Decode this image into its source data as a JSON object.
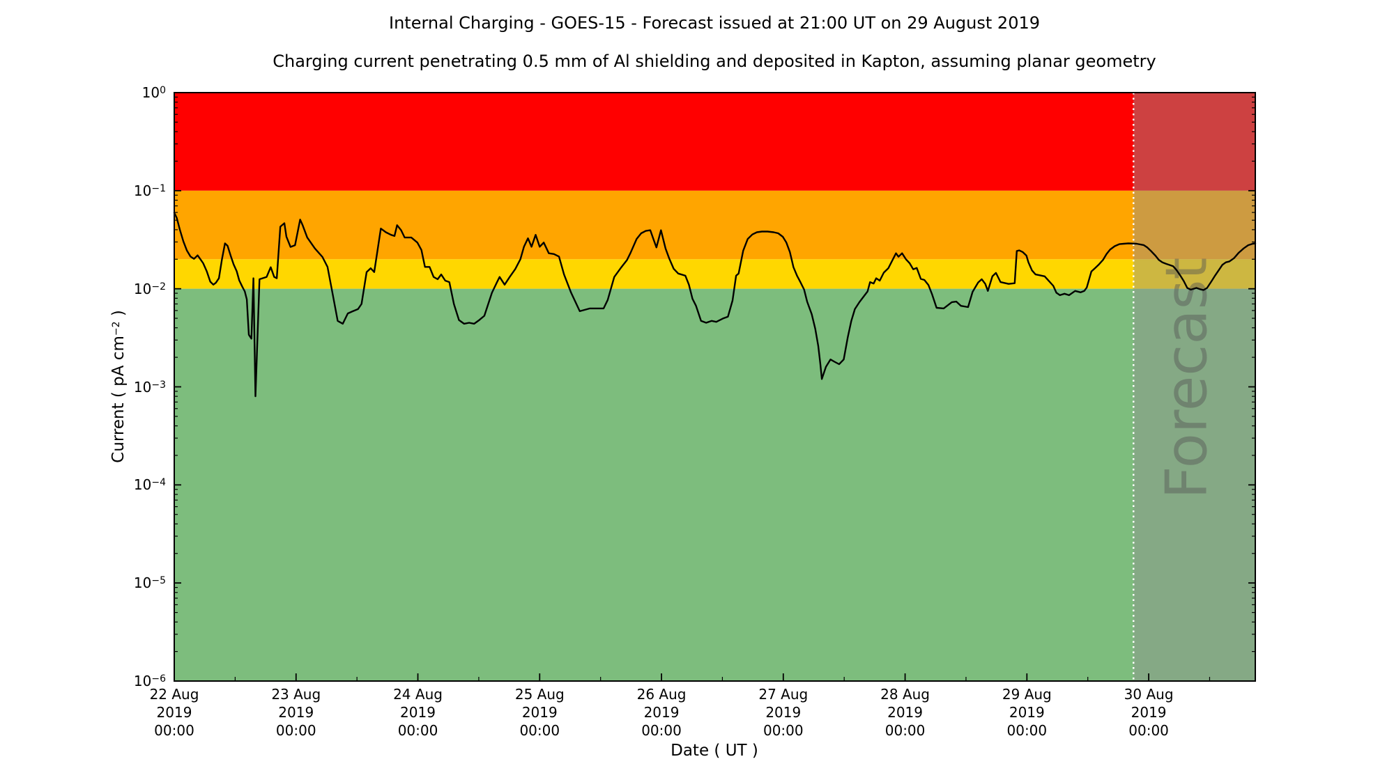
{
  "figure": {
    "title": "Internal Charging - GOES-15 - Forecast issued at 21:00 UT on 29 August 2019",
    "subtitle": "Charging current penetrating 0.5 mm of Al shielding and deposited in Kapton, assuming planar geometry"
  },
  "chart_data": {
    "type": "line",
    "title": "Internal Charging - GOES-15 - Forecast issued at 21:00 UT on 29 August 2019",
    "subtitle": "Charging current penetrating 0.5 mm of Al shielding and deposited in Kapton, assuming planar geometry",
    "xlabel": "Date ( UT )",
    "ylabel": {
      "pre": "Current ( pA cm",
      "sup": "−2",
      "post": " )"
    },
    "x_axis": {
      "start": "22 Aug 2019 00:00 UT",
      "end": "30 Aug 2019 21:00 UT",
      "range_hours": [
        0,
        213
      ],
      "major_ticks": [
        {
          "hour": 0,
          "label_lines": [
            "22 Aug",
            "2019",
            "00:00"
          ]
        },
        {
          "hour": 24,
          "label_lines": [
            "23 Aug",
            "2019",
            "00:00"
          ]
        },
        {
          "hour": 48,
          "label_lines": [
            "24 Aug",
            "2019",
            "00:00"
          ]
        },
        {
          "hour": 72,
          "label_lines": [
            "25 Aug",
            "2019",
            "00:00"
          ]
        },
        {
          "hour": 96,
          "label_lines": [
            "26 Aug",
            "2019",
            "00:00"
          ]
        },
        {
          "hour": 120,
          "label_lines": [
            "27 Aug",
            "2019",
            "00:00"
          ]
        },
        {
          "hour": 144,
          "label_lines": [
            "28 Aug",
            "2019",
            "00:00"
          ]
        },
        {
          "hour": 168,
          "label_lines": [
            "29 Aug",
            "2019",
            "00:00"
          ]
        },
        {
          "hour": 192,
          "label_lines": [
            "30 Aug",
            "2019",
            "00:00"
          ]
        }
      ],
      "minor_tick_hours": [
        12,
        36,
        60,
        84,
        108,
        132,
        156,
        180,
        204
      ]
    },
    "y_axis": {
      "scale": "log",
      "lim": [
        1e-06,
        1
      ],
      "tick_exponents": [
        0,
        -1,
        -2,
        -3,
        -4,
        -5,
        -6
      ]
    },
    "bands": [
      {
        "name": "red",
        "from": 0.1,
        "to": 1.0,
        "color": "#ff0000"
      },
      {
        "name": "orange",
        "from": 0.02,
        "to": 0.1,
        "color": "#ffa500"
      },
      {
        "name": "yellow",
        "from": 0.01,
        "to": 0.02,
        "color": "#ffd700"
      },
      {
        "name": "green",
        "from": 1e-06,
        "to": 0.01,
        "color": "#7dbd7d"
      }
    ],
    "forecast": {
      "divider_hour": 189,
      "watermark": "Forecast",
      "overlay_color": "rgba(145,145,145,0.45)",
      "divider_color": "#ffffff",
      "watermark_color": "rgba(85,85,85,0.45)"
    },
    "series": [
      {
        "name": "internal charging current",
        "color": "#000000",
        "points": [
          [
            0,
            0.0596
          ],
          [
            0.5,
            0.0528
          ],
          [
            1.1,
            0.0401
          ],
          [
            1.8,
            0.0304
          ],
          [
            2.5,
            0.0245
          ],
          [
            3.2,
            0.0213
          ],
          [
            3.9,
            0.0202
          ],
          [
            4.6,
            0.0219
          ],
          [
            5.1,
            0.0202
          ],
          [
            5.7,
            0.0182
          ],
          [
            6.4,
            0.0151
          ],
          [
            7.1,
            0.0118
          ],
          [
            7.7,
            0.011
          ],
          [
            8.2,
            0.0115
          ],
          [
            8.8,
            0.0128
          ],
          [
            9.4,
            0.0199
          ],
          [
            10,
            0.029
          ],
          [
            10.5,
            0.0274
          ],
          [
            11.1,
            0.0219
          ],
          [
            11.7,
            0.0177
          ],
          [
            12.3,
            0.0151
          ],
          [
            12.8,
            0.0122
          ],
          [
            13.4,
            0.0105
          ],
          [
            13.9,
            0.0094
          ],
          [
            14.3,
            0.0078
          ],
          [
            14.7,
            0.0034
          ],
          [
            15.2,
            0.0031
          ],
          [
            15.6,
            0.0128
          ],
          [
            16,
            0.0008
          ],
          [
            16.8,
            0.0125
          ],
          [
            18.2,
            0.0132
          ],
          [
            19,
            0.0166
          ],
          [
            19.7,
            0.0132
          ],
          [
            20.2,
            0.0128
          ],
          [
            20.9,
            0.043
          ],
          [
            21.7,
            0.0466
          ],
          [
            22.1,
            0.034
          ],
          [
            22.9,
            0.0267
          ],
          [
            23.8,
            0.0278
          ],
          [
            24.8,
            0.0508
          ],
          [
            25.3,
            0.0445
          ],
          [
            26.2,
            0.0333
          ],
          [
            27.7,
            0.0258
          ],
          [
            29.2,
            0.0211
          ],
          [
            30.2,
            0.0167
          ],
          [
            31.2,
            0.0089
          ],
          [
            32.2,
            0.0047
          ],
          [
            33.2,
            0.0044
          ],
          [
            34.2,
            0.0056
          ],
          [
            35.2,
            0.0059
          ],
          [
            36.2,
            0.0062
          ],
          [
            36.9,
            0.007
          ],
          [
            37.9,
            0.0148
          ],
          [
            38.7,
            0.0162
          ],
          [
            39.4,
            0.0148
          ],
          [
            40.7,
            0.0411
          ],
          [
            41.7,
            0.0377
          ],
          [
            42.7,
            0.0355
          ],
          [
            43.4,
            0.0345
          ],
          [
            43.9,
            0.0445
          ],
          [
            44.7,
            0.0395
          ],
          [
            45.4,
            0.0333
          ],
          [
            46.7,
            0.0333
          ],
          [
            47.9,
            0.0296
          ],
          [
            48.7,
            0.0249
          ],
          [
            49.4,
            0.0167
          ],
          [
            50.3,
            0.0167
          ],
          [
            51.1,
            0.0132
          ],
          [
            51.9,
            0.0125
          ],
          [
            52.6,
            0.014
          ],
          [
            53.4,
            0.0121
          ],
          [
            54.2,
            0.0117
          ],
          [
            55.1,
            0.007
          ],
          [
            56.1,
            0.0048
          ],
          [
            57.1,
            0.0044
          ],
          [
            58.1,
            0.0045
          ],
          [
            59.1,
            0.0044
          ],
          [
            60.1,
            0.0048
          ],
          [
            61.1,
            0.0053
          ],
          [
            62.6,
            0.0091
          ],
          [
            63.6,
            0.0117
          ],
          [
            64.1,
            0.0132
          ],
          [
            65.1,
            0.011
          ],
          [
            66.1,
            0.0132
          ],
          [
            67.2,
            0.0159
          ],
          [
            68.2,
            0.02
          ],
          [
            68.9,
            0.0268
          ],
          [
            69.7,
            0.0327
          ],
          [
            70.4,
            0.0268
          ],
          [
            71.2,
            0.0355
          ],
          [
            72,
            0.0268
          ],
          [
            72.8,
            0.0296
          ],
          [
            73.8,
            0.023
          ],
          [
            74.8,
            0.0226
          ],
          [
            75.8,
            0.0213
          ],
          [
            76.8,
            0.014
          ],
          [
            78.2,
            0.0091
          ],
          [
            79.9,
            0.0059
          ],
          [
            81.9,
            0.0063
          ],
          [
            84.6,
            0.0063
          ],
          [
            85.4,
            0.0077
          ],
          [
            86.7,
            0.0132
          ],
          [
            88.1,
            0.0166
          ],
          [
            89.2,
            0.0196
          ],
          [
            89.9,
            0.0232
          ],
          [
            91.1,
            0.0322
          ],
          [
            92,
            0.0368
          ],
          [
            92.9,
            0.0389
          ],
          [
            93.8,
            0.0395
          ],
          [
            94.5,
            0.0312
          ],
          [
            95,
            0.0264
          ],
          [
            95.9,
            0.0395
          ],
          [
            96.8,
            0.0257
          ],
          [
            97.5,
            0.0205
          ],
          [
            98.4,
            0.016
          ],
          [
            99.3,
            0.0143
          ],
          [
            100.7,
            0.0136
          ],
          [
            101.4,
            0.011
          ],
          [
            102.1,
            0.0079
          ],
          [
            102.8,
            0.0067
          ],
          [
            103.8,
            0.0047
          ],
          [
            104.8,
            0.0045
          ],
          [
            105.9,
            0.0047
          ],
          [
            106.8,
            0.0046
          ],
          [
            108.2,
            0.005
          ],
          [
            109.1,
            0.0052
          ],
          [
            110,
            0.0076
          ],
          [
            110.7,
            0.0136
          ],
          [
            111.2,
            0.0143
          ],
          [
            112.1,
            0.0245
          ],
          [
            113,
            0.0322
          ],
          [
            113.9,
            0.0358
          ],
          [
            114.8,
            0.0377
          ],
          [
            115.8,
            0.0383
          ],
          [
            116.9,
            0.0383
          ],
          [
            118.1,
            0.0377
          ],
          [
            119,
            0.0368
          ],
          [
            119.9,
            0.0339
          ],
          [
            120.6,
            0.0296
          ],
          [
            121.3,
            0.0236
          ],
          [
            122,
            0.0166
          ],
          [
            122.7,
            0.0136
          ],
          [
            123.4,
            0.0116
          ],
          [
            124.1,
            0.0098
          ],
          [
            124.7,
            0.0074
          ],
          [
            125.6,
            0.0055
          ],
          [
            126.3,
            0.0039
          ],
          [
            126.9,
            0.0026
          ],
          [
            127.3,
            0.0017
          ],
          [
            127.6,
            0.0012
          ],
          [
            128.4,
            0.0016
          ],
          [
            129.3,
            0.0019
          ],
          [
            130.1,
            0.0018
          ],
          [
            131,
            0.0017
          ],
          [
            131.9,
            0.0019
          ],
          [
            132.7,
            0.0032
          ],
          [
            133.4,
            0.0047
          ],
          [
            134.1,
            0.0062
          ],
          [
            135,
            0.0073
          ],
          [
            136.6,
            0.0094
          ],
          [
            137.1,
            0.0117
          ],
          [
            137.8,
            0.0113
          ],
          [
            138.3,
            0.0128
          ],
          [
            139,
            0.0121
          ],
          [
            139.8,
            0.0146
          ],
          [
            140.7,
            0.0162
          ],
          [
            142.2,
            0.023
          ],
          [
            142.7,
            0.0212
          ],
          [
            143.4,
            0.023
          ],
          [
            144.2,
            0.0199
          ],
          [
            144.9,
            0.0182
          ],
          [
            145.6,
            0.0158
          ],
          [
            146.3,
            0.0163
          ],
          [
            147.1,
            0.0126
          ],
          [
            147.8,
            0.0123
          ],
          [
            148.6,
            0.0109
          ],
          [
            149.3,
            0.0088
          ],
          [
            150.2,
            0.0064
          ],
          [
            151.6,
            0.0063
          ],
          [
            153.2,
            0.0073
          ],
          [
            154.1,
            0.0074
          ],
          [
            155,
            0.0067
          ],
          [
            156.4,
            0.0065
          ],
          [
            157.3,
            0.0093
          ],
          [
            158.4,
            0.0116
          ],
          [
            159.1,
            0.0125
          ],
          [
            159.8,
            0.0112
          ],
          [
            160.3,
            0.0095
          ],
          [
            161.2,
            0.0134
          ],
          [
            161.9,
            0.0145
          ],
          [
            162.8,
            0.0117
          ],
          [
            164.4,
            0.0112
          ],
          [
            165.6,
            0.0114
          ],
          [
            166,
            0.0243
          ],
          [
            166.5,
            0.0246
          ],
          [
            167.2,
            0.0236
          ],
          [
            167.9,
            0.0218
          ],
          [
            168.3,
            0.0186
          ],
          [
            169,
            0.0154
          ],
          [
            169.7,
            0.014
          ],
          [
            170.6,
            0.0137
          ],
          [
            171.5,
            0.0134
          ],
          [
            173.2,
            0.0107
          ],
          [
            173.8,
            0.0091
          ],
          [
            174.5,
            0.0086
          ],
          [
            175.4,
            0.0089
          ],
          [
            176.3,
            0.0086
          ],
          [
            177.5,
            0.0095
          ],
          [
            178.6,
            0.0092
          ],
          [
            179.3,
            0.0095
          ],
          [
            179.8,
            0.0103
          ],
          [
            180.7,
            0.015
          ],
          [
            181.4,
            0.0162
          ],
          [
            182.1,
            0.0175
          ],
          [
            183,
            0.0197
          ],
          [
            183.7,
            0.0226
          ],
          [
            184.4,
            0.0251
          ],
          [
            185.3,
            0.0272
          ],
          [
            186.2,
            0.0285
          ],
          [
            187.1,
            0.0288
          ],
          [
            188,
            0.029
          ],
          [
            189.6,
            0.0288
          ],
          [
            191,
            0.0279
          ],
          [
            191.7,
            0.0264
          ],
          [
            192.4,
            0.0244
          ],
          [
            193.3,
            0.0218
          ],
          [
            194,
            0.0197
          ],
          [
            194.7,
            0.0186
          ],
          [
            195.4,
            0.018
          ],
          [
            196.8,
            0.017
          ],
          [
            197.5,
            0.0155
          ],
          [
            198.2,
            0.0137
          ],
          [
            198.9,
            0.012
          ],
          [
            199.6,
            0.0102
          ],
          [
            200.3,
            0.0098
          ],
          [
            201.4,
            0.0102
          ],
          [
            202.1,
            0.0099
          ],
          [
            202.8,
            0.0097
          ],
          [
            203.5,
            0.0102
          ],
          [
            204.4,
            0.012
          ],
          [
            205.1,
            0.0137
          ],
          [
            205.8,
            0.0155
          ],
          [
            206.5,
            0.0175
          ],
          [
            207.2,
            0.0186
          ],
          [
            207.9,
            0.019
          ],
          [
            208.8,
            0.0205
          ],
          [
            209.7,
            0.0232
          ],
          [
            210.7,
            0.0258
          ],
          [
            211.6,
            0.0278
          ],
          [
            212.5,
            0.0288
          ],
          [
            213,
            0.029
          ]
        ]
      }
    ]
  },
  "colors": {
    "background": "#ffffff",
    "text": "#000000",
    "spine": "#000000"
  }
}
